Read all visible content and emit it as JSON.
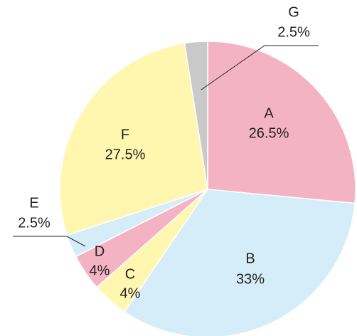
{
  "chart_data": {
    "type": "pie",
    "categories": [
      "A",
      "B",
      "C",
      "D",
      "E",
      "F",
      "G"
    ],
    "values": [
      26.5,
      33,
      4,
      4,
      2.5,
      27.5,
      2.5
    ],
    "value_labels": [
      "26.5%",
      "33%",
      "4%",
      "4%",
      "2.5%",
      "27.5%",
      "2.5%"
    ],
    "colors": [
      "#f4b3c3",
      "#d5ecf9",
      "#fff6b0",
      "#f4b3c3",
      "#d5ecf9",
      "#fff6b0",
      "#c9c9c9"
    ]
  }
}
